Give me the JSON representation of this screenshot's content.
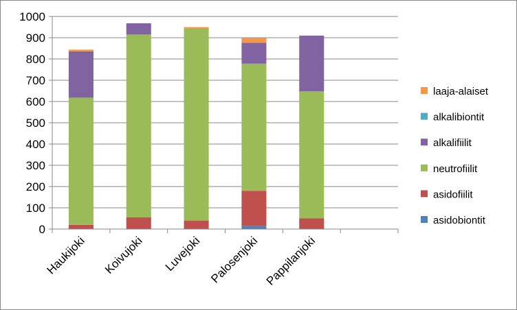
{
  "chart_data": {
    "type": "bar",
    "stacked": true,
    "categories": [
      "Haukijoki",
      "Koivujoki",
      "Luvejoki",
      "Palosenjoki",
      "Pappilanjoki",
      ""
    ],
    "series": [
      {
        "name": "asidobiontit",
        "color": "#4f81bd",
        "values": [
          0,
          0,
          0,
          15,
          0,
          0
        ]
      },
      {
        "name": "asidofiilit",
        "color": "#c0504d",
        "values": [
          20,
          55,
          40,
          165,
          50,
          0
        ]
      },
      {
        "name": "neutrofiilit",
        "color": "#9bbb59",
        "values": [
          598,
          860,
          905,
          598,
          598,
          0
        ]
      },
      {
        "name": "alkalifiilit",
        "color": "#8064a2",
        "values": [
          218,
          53,
          0,
          98,
          262,
          0
        ]
      },
      {
        "name": "alkalibiontit",
        "color": "#4bacc6",
        "values": [
          0,
          0,
          0,
          0,
          0,
          0
        ]
      },
      {
        "name": "laaja-alaiset",
        "color": "#f79646",
        "values": [
          8,
          0,
          5,
          22,
          0,
          0
        ]
      }
    ],
    "ylim": [
      0,
      1000
    ],
    "yticks": [
      "0",
      "100",
      "200",
      "300",
      "400",
      "500",
      "600",
      "700",
      "800",
      "900",
      "1000"
    ],
    "grid": true,
    "legend_position": "right"
  }
}
